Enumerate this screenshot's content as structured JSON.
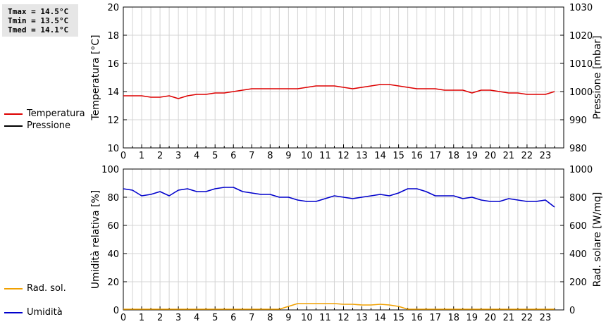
{
  "stats": {
    "tmax": "Tmax = 14.5°C",
    "tmin": "Tmin = 13.5°C",
    "tmed": "Tmed = 14.1°C"
  },
  "legend": {
    "top": [
      {
        "label": "Temperatura",
        "color": "#dd0000"
      },
      {
        "label": "Pressione",
        "color": "#000000"
      }
    ],
    "bottom": [
      {
        "label": "Umidità",
        "color": "#0000cc"
      },
      {
        "label": "Rad. sol.",
        "color": "#f0a000"
      }
    ]
  },
  "chart_data": [
    {
      "type": "line",
      "x_ticks": [
        "0",
        "1",
        "2",
        "3",
        "4",
        "5",
        "6",
        "7",
        "8",
        "9",
        "10",
        "11",
        "12",
        "13",
        "14",
        "15",
        "16",
        "17",
        "18",
        "19",
        "20",
        "21",
        "22",
        "23"
      ],
      "ylabel_left": "Temperatura [°C]",
      "ylabel_right": "Pressione [mbar]",
      "ylim_left": [
        10,
        20
      ],
      "ylim_right": [
        980,
        1030
      ],
      "yticks_left": [
        "10",
        "12",
        "14",
        "16",
        "18",
        "20"
      ],
      "yticks_right": [
        "980",
        "990",
        "1000",
        "1010",
        "1020",
        "1030"
      ],
      "grid": true,
      "series": [
        {
          "name": "Temperatura",
          "axis": "left",
          "color": "#dd0000",
          "x": [
            0,
            1,
            1.5,
            2,
            2.5,
            3,
            3.5,
            4,
            4.5,
            5,
            5.5,
            6,
            6.5,
            7,
            8,
            9,
            9.5,
            10,
            10.5,
            11,
            11.5,
            12,
            12.5,
            13,
            13.5,
            14,
            14.5,
            15,
            15.5,
            16,
            16.5,
            17,
            17.5,
            18,
            18.5,
            19,
            19.5,
            20,
            20.5,
            21,
            21.5,
            22,
            22.5,
            23,
            23.5
          ],
          "y": [
            13.7,
            13.7,
            13.6,
            13.6,
            13.7,
            13.5,
            13.7,
            13.8,
            13.8,
            13.9,
            13.9,
            14.0,
            14.1,
            14.2,
            14.2,
            14.2,
            14.2,
            14.3,
            14.4,
            14.4,
            14.4,
            14.3,
            14.2,
            14.3,
            14.4,
            14.5,
            14.5,
            14.4,
            14.3,
            14.2,
            14.2,
            14.2,
            14.1,
            14.1,
            14.1,
            13.9,
            14.1,
            14.1,
            14.0,
            13.9,
            13.9,
            13.8,
            13.8,
            13.8,
            14.0
          ]
        }
      ]
    },
    {
      "type": "line",
      "x_ticks": [
        "0",
        "1",
        "2",
        "3",
        "4",
        "5",
        "6",
        "7",
        "8",
        "9",
        "10",
        "11",
        "12",
        "13",
        "14",
        "15",
        "16",
        "17",
        "18",
        "19",
        "20",
        "21",
        "22",
        "23"
      ],
      "ylabel_left": "Umidità relativa [%]",
      "ylabel_right": "Rad. solare [W/mq]",
      "ylim_left": [
        0,
        100
      ],
      "ylim_right": [
        0,
        1000
      ],
      "yticks_left": [
        "0",
        "20",
        "40",
        "60",
        "80",
        "100"
      ],
      "yticks_right": [
        "0",
        "200",
        "400",
        "600",
        "800",
        "1000"
      ],
      "grid": true,
      "series": [
        {
          "name": "Umidità",
          "axis": "left",
          "color": "#0000cc",
          "x": [
            0,
            0.5,
            1,
            1.5,
            2,
            2.5,
            3,
            3.5,
            4,
            4.5,
            5,
            5.5,
            6,
            6.5,
            7,
            7.5,
            8,
            8.5,
            9,
            9.5,
            10,
            10.5,
            11,
            11.5,
            12,
            12.5,
            13,
            13.5,
            14,
            14.5,
            15,
            15.5,
            16,
            16.5,
            17,
            17.5,
            18,
            18.5,
            19,
            19.5,
            20,
            20.5,
            21,
            21.5,
            22,
            22.5,
            23,
            23.5
          ],
          "y": [
            86,
            85,
            81,
            82,
            84,
            81,
            85,
            86,
            84,
            84,
            86,
            87,
            87,
            84,
            83,
            82,
            82,
            80,
            80,
            78,
            77,
            77,
            79,
            81,
            80,
            79,
            80,
            81,
            82,
            81,
            83,
            86,
            86,
            84,
            81,
            81,
            81,
            79,
            80,
            78,
            77,
            77,
            79,
            78,
            77,
            77,
            78,
            73
          ]
        },
        {
          "name": "Rad. sol.",
          "axis": "right",
          "color": "#f0a000",
          "x": [
            0,
            1,
            2,
            3,
            4,
            5,
            6,
            7,
            8,
            8.5,
            9,
            9.5,
            10,
            10.5,
            11,
            11.5,
            12,
            12.5,
            13,
            13.5,
            14,
            14.5,
            15,
            15.5,
            16,
            17,
            18,
            19,
            20,
            21,
            22,
            23,
            23.5
          ],
          "y": [
            5,
            5,
            5,
            5,
            5,
            5,
            5,
            5,
            5,
            5,
            25,
            45,
            45,
            45,
            45,
            45,
            40,
            40,
            35,
            35,
            40,
            35,
            25,
            5,
            5,
            5,
            5,
            5,
            5,
            5,
            5,
            5,
            5
          ]
        }
      ]
    }
  ]
}
